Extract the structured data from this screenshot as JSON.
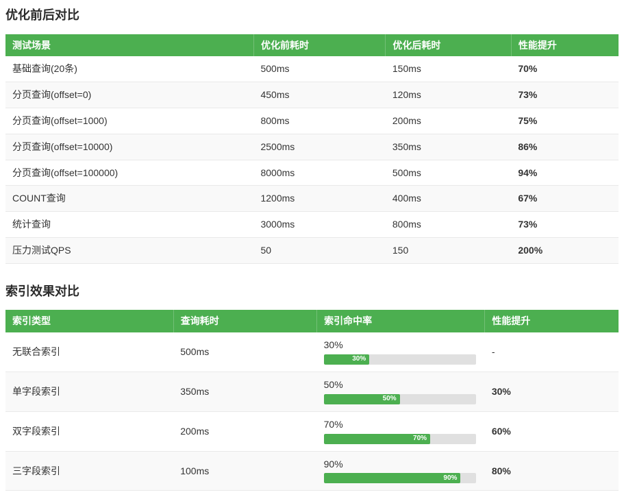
{
  "colors": {
    "accent_green": "#4caf50",
    "header_green": "#4caf50",
    "bar_track": "#e0e0e0",
    "row_alt": "#f9f9f9",
    "border": "#e9e9e9"
  },
  "sections": {
    "optimization": {
      "title": "优化前后对比",
      "headers": [
        "测试场景",
        "优化前耗时",
        "优化后耗时",
        "性能提升"
      ],
      "rows": [
        {
          "scenario": "基础查询(20条)",
          "before": "500ms",
          "after": "150ms",
          "gain": "70%"
        },
        {
          "scenario": "分页查询(offset=0)",
          "before": "450ms",
          "after": "120ms",
          "gain": "73%"
        },
        {
          "scenario": "分页查询(offset=1000)",
          "before": "800ms",
          "after": "200ms",
          "gain": "75%"
        },
        {
          "scenario": "分页查询(offset=10000)",
          "before": "2500ms",
          "after": "350ms",
          "gain": "86%"
        },
        {
          "scenario": "分页查询(offset=100000)",
          "before": "8000ms",
          "after": "500ms",
          "gain": "94%"
        },
        {
          "scenario": "COUNT查询",
          "before": "1200ms",
          "after": "400ms",
          "gain": "67%"
        },
        {
          "scenario": "统计查询",
          "before": "3000ms",
          "after": "800ms",
          "gain": "73%"
        },
        {
          "scenario": "压力测试QPS",
          "before": "50",
          "after": "150",
          "gain": "200%"
        }
      ]
    },
    "index": {
      "title": "索引效果对比",
      "headers": [
        "索引类型",
        "查询耗时",
        "索引命中率",
        "性能提升"
      ],
      "rows": [
        {
          "type": "无联合索引",
          "time": "500ms",
          "hit_label": "30%",
          "hit_pct": 30,
          "gain": "-"
        },
        {
          "type": "单字段索引",
          "time": "350ms",
          "hit_label": "50%",
          "hit_pct": 50,
          "gain": "30%"
        },
        {
          "type": "双字段索引",
          "time": "200ms",
          "hit_label": "70%",
          "hit_pct": 70,
          "gain": "60%"
        },
        {
          "type": "三字段索引",
          "time": "100ms",
          "hit_label": "90%",
          "hit_pct": 90,
          "gain": "80%"
        }
      ]
    }
  }
}
